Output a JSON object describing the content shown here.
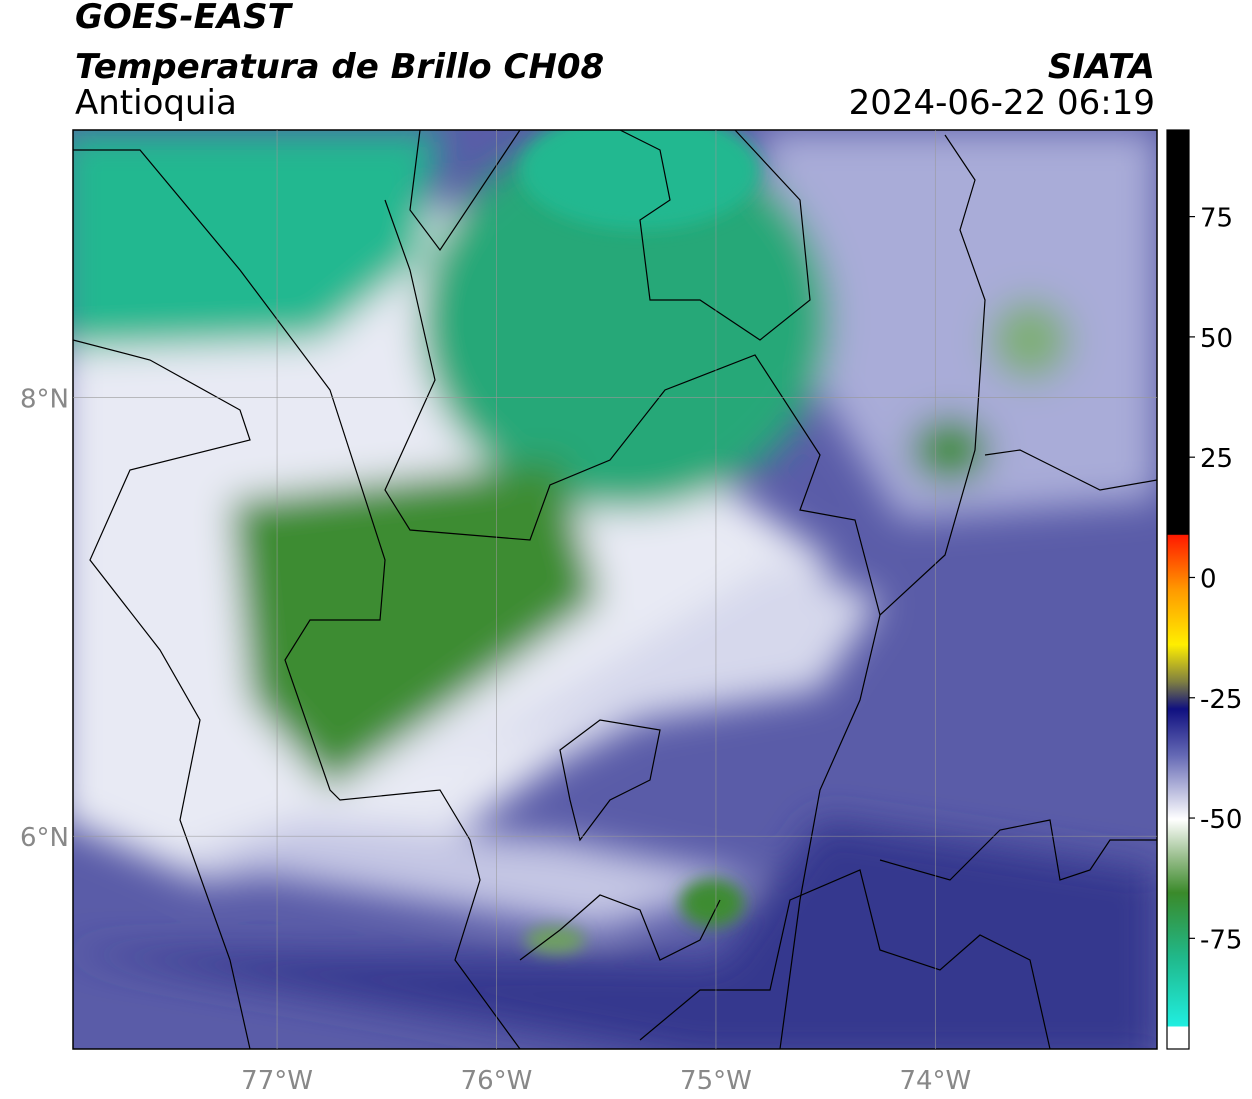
{
  "chart_data": {
    "type": "map",
    "title": "GOES-EAST",
    "subtitle": "Temperatura de Brillo CH08",
    "region": "Antioquia",
    "source": "SIATA",
    "timestamp": "2024-06-22 06:19",
    "xlim": [
      -77.93,
      -72.99
    ],
    "ylim": [
      5.03,
      9.22
    ],
    "xticks": [
      {
        "value": -77,
        "label": "77°W"
      },
      {
        "value": -76,
        "label": "76°W"
      },
      {
        "value": -75,
        "label": "75°W"
      },
      {
        "value": -74,
        "label": "74°W"
      }
    ],
    "yticks": [
      {
        "value": 6,
        "label": "6°N"
      },
      {
        "value": 8,
        "label": "8°N"
      }
    ],
    "grid": true,
    "colorbar": {
      "clim": [
        -98,
        93
      ],
      "ticks": [
        -75,
        -50,
        -25,
        0,
        25,
        50,
        75
      ]
    }
  }
}
